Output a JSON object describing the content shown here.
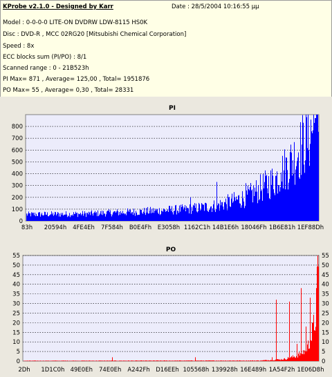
{
  "header": {
    "title": "KProbe v2.1.0 - Designed by Karr",
    "date": "Date : 28/5/2004 10:16:55 µµ",
    "model": "Model : 0-0-0-0 LITE-ON DVDRW LDW-8115   HS0K",
    "disc": "Disc : DVD-R , MCC 02RG20  [Mitsubishi Chemical Corporation]",
    "speed": "Speed : 8x",
    "ecc": "ECC blocks sum (PI/PO) : 8/1",
    "range": "Scanned range : 0 - 21B523h",
    "pi_stats": "PI Max= 871 , Average= 125,00 , Total= 1951876",
    "po_stats": "PO Max= 55 , Average= 0,30 , Total= 28331"
  },
  "colors": {
    "pi": "#0000ff",
    "po": "#ff0000",
    "info_bg": "#ffffe6",
    "panel_bg": "#ebe8df",
    "plot_bg": "#ececfb"
  },
  "chart_data": [
    {
      "type": "bar",
      "title": "PI",
      "ylim": [
        0,
        900
      ],
      "yticks": [
        "0",
        "100",
        "200",
        "300",
        "400",
        "500",
        "600",
        "700",
        "800"
      ],
      "xlabels": [
        "83h",
        "20594h",
        "4FE4Eh",
        "7F584h",
        "B0E4Fh",
        "E3058h",
        "1162C1h",
        "14B1E6h",
        "18046Fh",
        "1B6E81h",
        "1EF88Dh"
      ],
      "grid": true,
      "profile": [
        [
          0,
          55
        ],
        [
          0.2,
          60
        ],
        [
          0.4,
          80
        ],
        [
          0.55,
          100
        ],
        [
          0.65,
          130
        ],
        [
          0.75,
          200
        ],
        [
          0.85,
          350
        ],
        [
          0.92,
          550
        ],
        [
          0.97,
          750
        ],
        [
          1.0,
          871
        ]
      ],
      "spikes": [
        [
          0.56,
          200
        ],
        [
          0.65,
          330
        ],
        [
          0.75,
          320
        ],
        [
          0.82,
          390
        ],
        [
          0.87,
          410
        ],
        [
          0.93,
          580
        ],
        [
          0.985,
          871
        ]
      ]
    },
    {
      "type": "bar",
      "title": "PO",
      "ylim": [
        0,
        55
      ],
      "yticks": [
        "0",
        "5",
        "10",
        "15",
        "20",
        "25",
        "30",
        "35",
        "40",
        "45",
        "50",
        "55"
      ],
      "xlabels": [
        "2Dh",
        "1D1C0h",
        "49E0Eh",
        "74E0Eh",
        "A242Fh",
        "D16EEh",
        "105568h",
        "139928h",
        "16E489h",
        "1A54F2h",
        "1E06D8h"
      ],
      "grid": true,
      "profile": [
        [
          0,
          0.2
        ],
        [
          0.8,
          0.3
        ],
        [
          0.88,
          1.0
        ],
        [
          0.92,
          2.5
        ],
        [
          0.95,
          5
        ],
        [
          0.97,
          10
        ],
        [
          0.985,
          20
        ],
        [
          1.0,
          48
        ]
      ],
      "spikes": [
        [
          0.3,
          2
        ],
        [
          0.58,
          2
        ],
        [
          0.84,
          2
        ],
        [
          0.855,
          32
        ],
        [
          0.9,
          31
        ],
        [
          0.925,
          9
        ],
        [
          0.94,
          38
        ],
        [
          0.955,
          18
        ],
        [
          0.97,
          33
        ],
        [
          0.995,
          55
        ]
      ]
    }
  ]
}
